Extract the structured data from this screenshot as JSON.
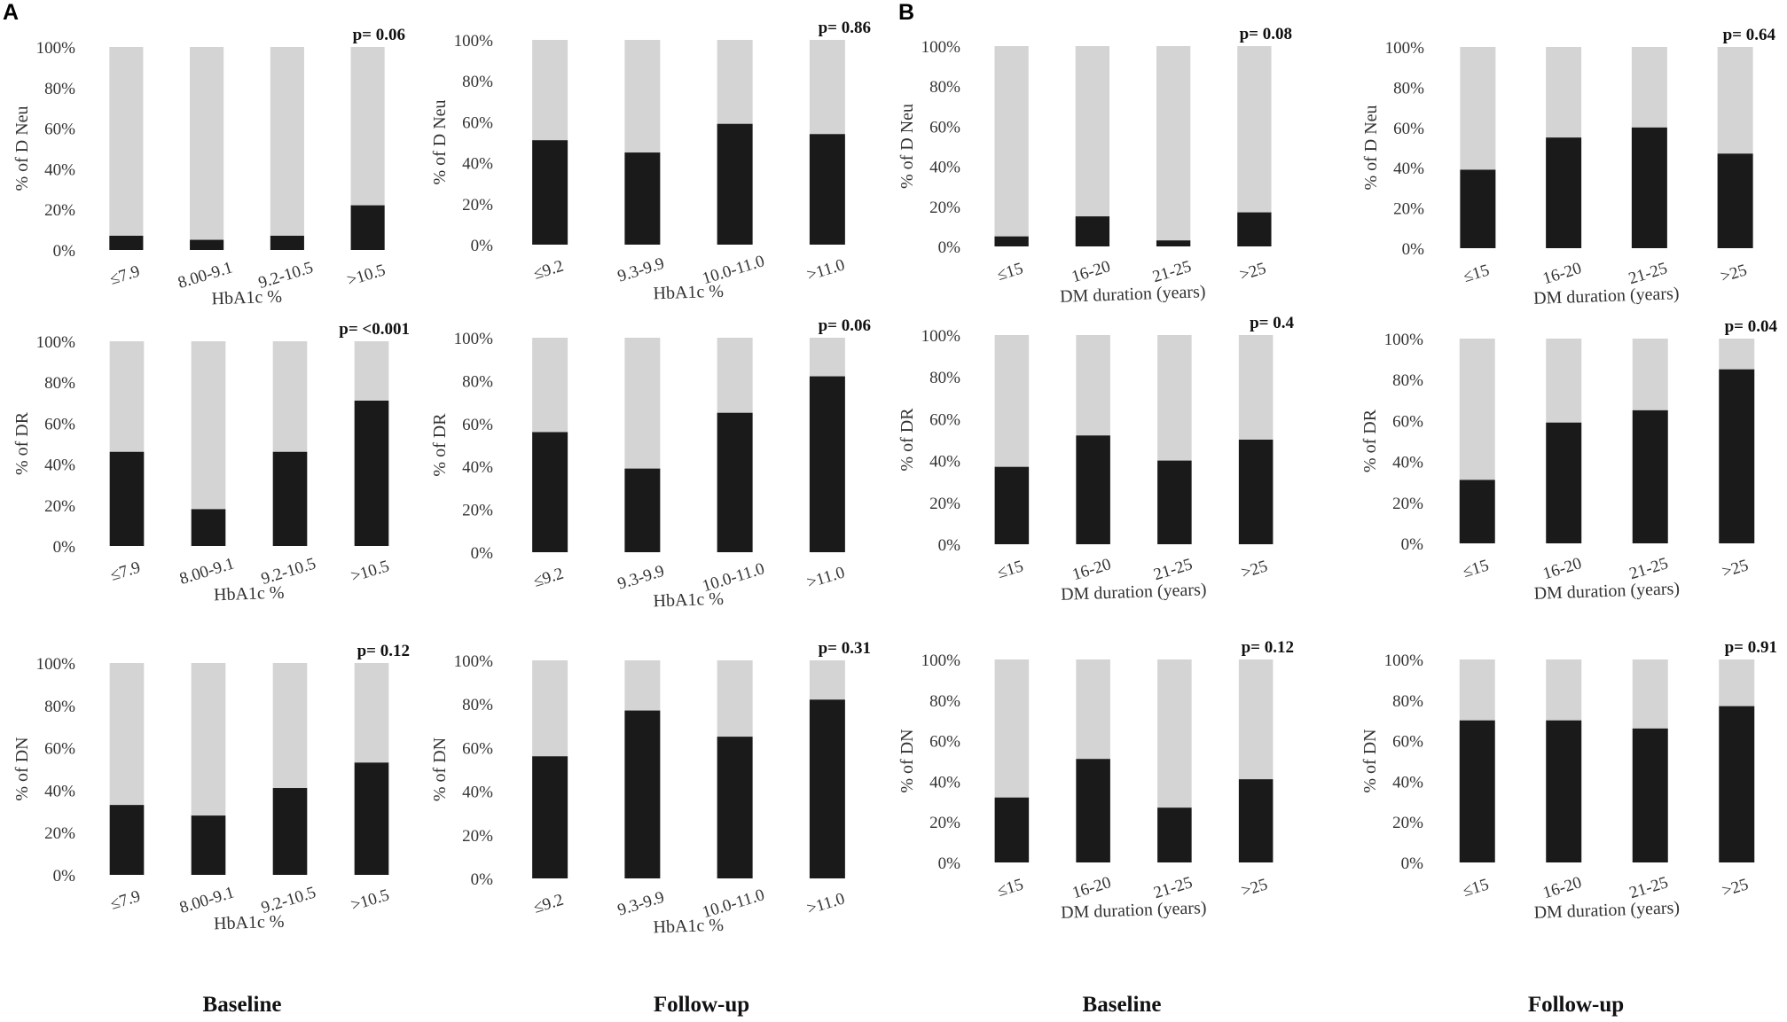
{
  "panels": [
    {
      "letter": "A"
    },
    {
      "letter": "B"
    }
  ],
  "column_labels": [
    "Baseline",
    "Follow-up",
    "Baseline",
    "Follow-up"
  ],
  "colors": {
    "positive": "#1a1a1a",
    "negative": "#d4d4d4"
  },
  "yticks": [
    "0%",
    "20%",
    "40%",
    "60%",
    "80%",
    "100%"
  ],
  "chart_data": [
    {
      "type": "bar",
      "stacked": true,
      "ylabel": "% of D Neu",
      "xlabel": "HbA1c %",
      "pvalue": "p= 0.06",
      "categories": [
        "≤7.9",
        "8.00-9.1",
        "9.2-10.5",
        ">10.5"
      ],
      "values": [
        7,
        5,
        7,
        22
      ],
      "ylim": [
        0,
        100
      ]
    },
    {
      "type": "bar",
      "stacked": true,
      "ylabel": "% of D Neu",
      "xlabel": "HbA1c %",
      "pvalue": "p= 0.86",
      "categories": [
        "≤9.2",
        "9.3-9.9",
        "10.0-11.0",
        ">11.0"
      ],
      "values": [
        51,
        45,
        59,
        54
      ],
      "ylim": [
        0,
        100
      ]
    },
    {
      "type": "bar",
      "stacked": true,
      "ylabel": "% of D Neu",
      "xlabel": "DM duration (years)",
      "pvalue": "p= 0.08",
      "categories": [
        "≤15",
        "16-20",
        "21-25",
        ">25"
      ],
      "values": [
        5,
        15,
        3,
        17
      ],
      "ylim": [
        0,
        100
      ]
    },
    {
      "type": "bar",
      "stacked": true,
      "ylabel": "% of D Neu",
      "xlabel": "DM duration (years)",
      "pvalue": "p= 0.64",
      "categories": [
        "≤15",
        "16-20",
        "21-25",
        ">25"
      ],
      "values": [
        39,
        55,
        60,
        47
      ],
      "ylim": [
        0,
        100
      ]
    },
    {
      "type": "bar",
      "stacked": true,
      "ylabel": "% of DR",
      "xlabel": "HbA1c %",
      "pvalue": "p= <0.001",
      "categories": [
        "≤7.9",
        "8.00-9.1",
        "9.2-10.5",
        ">10.5"
      ],
      "values": [
        46,
        18,
        46,
        71
      ],
      "ylim": [
        0,
        100
      ]
    },
    {
      "type": "bar",
      "stacked": true,
      "ylabel": "% of DR",
      "xlabel": "HbA1c %",
      "pvalue": "p= 0.06",
      "categories": [
        "≤9.2",
        "9.3-9.9",
        "10.0-11.0",
        ">11.0"
      ],
      "values": [
        56,
        39,
        65,
        82
      ],
      "ylim": [
        0,
        100
      ]
    },
    {
      "type": "bar",
      "stacked": true,
      "ylabel": "% of DR",
      "xlabel": "DM duration (years)",
      "pvalue": "p= 0.4",
      "categories": [
        "≤15",
        "16-20",
        "21-25",
        ">25"
      ],
      "values": [
        37,
        52,
        40,
        50
      ],
      "ylim": [
        0,
        100
      ]
    },
    {
      "type": "bar",
      "stacked": true,
      "ylabel": "% of DR",
      "xlabel": "DM duration (years)",
      "pvalue": "p= 0.04",
      "categories": [
        "≤15",
        "16-20",
        "21-25",
        ">25"
      ],
      "values": [
        31,
        59,
        65,
        85
      ],
      "ylim": [
        0,
        100
      ]
    },
    {
      "type": "bar",
      "stacked": true,
      "ylabel": "% of DN",
      "xlabel": "HbA1c %",
      "pvalue": "p= 0.12",
      "categories": [
        "≤7.9",
        "8.00-9.1",
        "9.2-10.5",
        ">10.5"
      ],
      "values": [
        33,
        28,
        41,
        53
      ],
      "ylim": [
        0,
        100
      ]
    },
    {
      "type": "bar",
      "stacked": true,
      "ylabel": "% of DN",
      "xlabel": "HbA1c %",
      "pvalue": "p= 0.31",
      "categories": [
        "≤9.2",
        "9.3-9.9",
        "10.0-11.0",
        ">11.0"
      ],
      "values": [
        56,
        77,
        65,
        82
      ],
      "ylim": [
        0,
        100
      ]
    },
    {
      "type": "bar",
      "stacked": true,
      "ylabel": "% of DN",
      "xlabel": "DM duration (years)",
      "pvalue": "p= 0.12",
      "categories": [
        "≤15",
        "16-20",
        "21-25",
        ">25"
      ],
      "values": [
        32,
        51,
        27,
        41
      ],
      "ylim": [
        0,
        100
      ]
    },
    {
      "type": "bar",
      "stacked": true,
      "ylabel": "% of DN",
      "xlabel": "DM duration (years)",
      "pvalue": "p= 0.91",
      "categories": [
        "≤15",
        "16-20",
        "21-25",
        ">25"
      ],
      "values": [
        70,
        70,
        66,
        77
      ],
      "ylim": [
        0,
        100
      ]
    }
  ]
}
